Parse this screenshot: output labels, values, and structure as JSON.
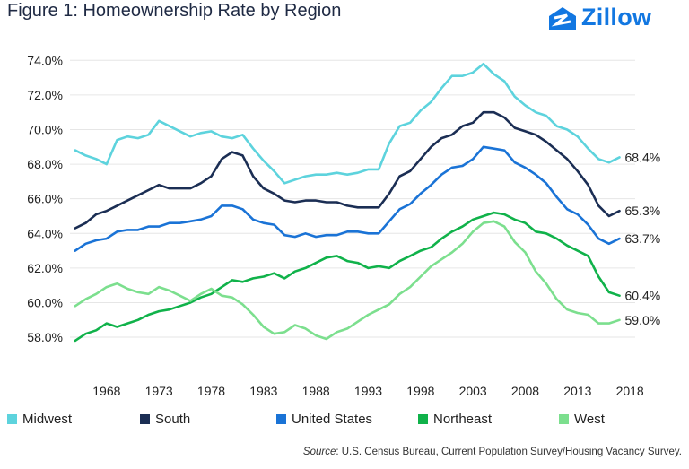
{
  "header": {
    "title": "Figure 1: Homeownership Rate by Region",
    "brand": "Zillow",
    "brand_icon": "zillow-house-icon"
  },
  "source": {
    "label": "Source",
    "text": ": U.S. Census Bureau, Current Population Survey/Housing Vacancy Survey."
  },
  "chart_data": {
    "type": "line",
    "xlim": [
      1964.5,
      2018.5
    ],
    "ylim": [
      56.5,
      75
    ],
    "x_ticks": [
      1968,
      1973,
      1978,
      1983,
      1988,
      1993,
      1998,
      2003,
      2008,
      2013,
      2018
    ],
    "y_ticks": [
      58,
      60,
      62,
      64,
      66,
      68,
      70,
      72,
      74
    ],
    "y_tick_labels": [
      "58.0%",
      "60.0%",
      "62.0%",
      "64.0%",
      "66.0%",
      "68.0%",
      "70.0%",
      "72.0%",
      "74.0%"
    ],
    "grid": "horizontal",
    "legend": "bottom",
    "series": [
      {
        "name": "Midwest",
        "color": "#5dd3dd",
        "end_label": "68.4%",
        "x": [
          1965,
          1966,
          1967,
          1968,
          1969,
          1970,
          1971,
          1972,
          1973,
          1974,
          1975,
          1976,
          1977,
          1978,
          1979,
          1980,
          1981,
          1982,
          1983,
          1984,
          1985,
          1986,
          1987,
          1988,
          1989,
          1990,
          1991,
          1992,
          1993,
          1994,
          1995,
          1996,
          1997,
          1998,
          1999,
          2000,
          2001,
          2002,
          2003,
          2004,
          2005,
          2006,
          2007,
          2008,
          2009,
          2010,
          2011,
          2012,
          2013,
          2014,
          2015,
          2016,
          2017
        ],
        "values": [
          68.8,
          68.5,
          68.3,
          68.0,
          69.4,
          69.6,
          69.5,
          69.7,
          70.5,
          70.2,
          69.9,
          69.6,
          69.8,
          69.9,
          69.6,
          69.5,
          69.7,
          68.9,
          68.2,
          67.6,
          66.9,
          67.1,
          67.3,
          67.4,
          67.4,
          67.5,
          67.4,
          67.5,
          67.7,
          67.7,
          69.2,
          70.2,
          70.4,
          71.1,
          71.6,
          72.4,
          73.1,
          73.1,
          73.3,
          73.8,
          73.2,
          72.8,
          71.9,
          71.4,
          71.0,
          70.8,
          70.2,
          70.0,
          69.6,
          68.9,
          68.3,
          68.1,
          68.4
        ]
      },
      {
        "name": "South",
        "color": "#1b2e54",
        "end_label": "65.3%",
        "x": [
          1965,
          1966,
          1967,
          1968,
          1969,
          1970,
          1971,
          1972,
          1973,
          1974,
          1975,
          1976,
          1977,
          1978,
          1979,
          1980,
          1981,
          1982,
          1983,
          1984,
          1985,
          1986,
          1987,
          1988,
          1989,
          1990,
          1991,
          1992,
          1993,
          1994,
          1995,
          1996,
          1997,
          1998,
          1999,
          2000,
          2001,
          2002,
          2003,
          2004,
          2005,
          2006,
          2007,
          2008,
          2009,
          2010,
          2011,
          2012,
          2013,
          2014,
          2015,
          2016,
          2017
        ],
        "values": [
          64.3,
          64.6,
          65.1,
          65.3,
          65.6,
          65.9,
          66.2,
          66.5,
          66.8,
          66.6,
          66.6,
          66.6,
          66.9,
          67.3,
          68.3,
          68.7,
          68.5,
          67.3,
          66.6,
          66.3,
          65.9,
          65.8,
          65.9,
          65.9,
          65.8,
          65.8,
          65.6,
          65.5,
          65.5,
          65.5,
          66.3,
          67.3,
          67.6,
          68.3,
          69.0,
          69.5,
          69.7,
          70.2,
          70.4,
          71.0,
          71.0,
          70.7,
          70.1,
          69.9,
          69.7,
          69.3,
          68.8,
          68.3,
          67.6,
          66.8,
          65.6,
          65.0,
          65.3
        ]
      },
      {
        "name": "United States",
        "color": "#1a73d6",
        "end_label": "63.7%",
        "x": [
          1965,
          1966,
          1967,
          1968,
          1969,
          1970,
          1971,
          1972,
          1973,
          1974,
          1975,
          1976,
          1977,
          1978,
          1979,
          1980,
          1981,
          1982,
          1983,
          1984,
          1985,
          1986,
          1987,
          1988,
          1989,
          1990,
          1991,
          1992,
          1993,
          1994,
          1995,
          1996,
          1997,
          1998,
          1999,
          2000,
          2001,
          2002,
          2003,
          2004,
          2005,
          2006,
          2007,
          2008,
          2009,
          2010,
          2011,
          2012,
          2013,
          2014,
          2015,
          2016,
          2017
        ],
        "values": [
          63.0,
          63.4,
          63.6,
          63.7,
          64.1,
          64.2,
          64.2,
          64.4,
          64.4,
          64.6,
          64.6,
          64.7,
          64.8,
          65.0,
          65.6,
          65.6,
          65.4,
          64.8,
          64.6,
          64.5,
          63.9,
          63.8,
          64.0,
          63.8,
          63.9,
          63.9,
          64.1,
          64.1,
          64.0,
          64.0,
          64.7,
          65.4,
          65.7,
          66.3,
          66.8,
          67.4,
          67.8,
          67.9,
          68.3,
          69.0,
          68.9,
          68.8,
          68.1,
          67.8,
          67.4,
          66.9,
          66.1,
          65.4,
          65.1,
          64.5,
          63.7,
          63.4,
          63.7
        ]
      },
      {
        "name": "Northeast",
        "color": "#10b24a",
        "end_label": "60.4%",
        "x": [
          1965,
          1966,
          1967,
          1968,
          1969,
          1970,
          1971,
          1972,
          1973,
          1974,
          1975,
          1976,
          1977,
          1978,
          1979,
          1980,
          1981,
          1982,
          1983,
          1984,
          1985,
          1986,
          1987,
          1988,
          1989,
          1990,
          1991,
          1992,
          1993,
          1994,
          1995,
          1996,
          1997,
          1998,
          1999,
          2000,
          2001,
          2002,
          2003,
          2004,
          2005,
          2006,
          2007,
          2008,
          2009,
          2010,
          2011,
          2012,
          2013,
          2014,
          2015,
          2016,
          2017
        ],
        "values": [
          57.8,
          58.2,
          58.4,
          58.8,
          58.6,
          58.8,
          59.0,
          59.3,
          59.5,
          59.6,
          59.8,
          60.0,
          60.3,
          60.5,
          60.9,
          61.3,
          61.2,
          61.4,
          61.5,
          61.7,
          61.4,
          61.8,
          62.0,
          62.3,
          62.6,
          62.7,
          62.4,
          62.3,
          62.0,
          62.1,
          62.0,
          62.4,
          62.7,
          63.0,
          63.2,
          63.7,
          64.1,
          64.4,
          64.8,
          65.0,
          65.2,
          65.1,
          64.8,
          64.6,
          64.1,
          64.0,
          63.7,
          63.3,
          63.0,
          62.7,
          61.5,
          60.6,
          60.4
        ]
      },
      {
        "name": "West",
        "color": "#7cdf8e",
        "end_label": "59.0%",
        "x": [
          1965,
          1966,
          1967,
          1968,
          1969,
          1970,
          1971,
          1972,
          1973,
          1974,
          1975,
          1976,
          1977,
          1978,
          1979,
          1980,
          1981,
          1982,
          1983,
          1984,
          1985,
          1986,
          1987,
          1988,
          1989,
          1990,
          1991,
          1992,
          1993,
          1994,
          1995,
          1996,
          1997,
          1998,
          1999,
          2000,
          2001,
          2002,
          2003,
          2004,
          2005,
          2006,
          2007,
          2008,
          2009,
          2010,
          2011,
          2012,
          2013,
          2014,
          2015,
          2016,
          2017
        ],
        "values": [
          59.8,
          60.2,
          60.5,
          60.9,
          61.1,
          60.8,
          60.6,
          60.5,
          60.9,
          60.7,
          60.4,
          60.1,
          60.5,
          60.8,
          60.4,
          60.3,
          59.9,
          59.3,
          58.6,
          58.2,
          58.3,
          58.7,
          58.5,
          58.1,
          57.9,
          58.3,
          58.5,
          58.9,
          59.3,
          59.6,
          59.9,
          60.5,
          60.9,
          61.5,
          62.1,
          62.5,
          62.9,
          63.4,
          64.1,
          64.6,
          64.7,
          64.4,
          63.5,
          62.9,
          61.8,
          61.1,
          60.2,
          59.6,
          59.4,
          59.3,
          58.8,
          58.8,
          59.0
        ]
      }
    ]
  }
}
